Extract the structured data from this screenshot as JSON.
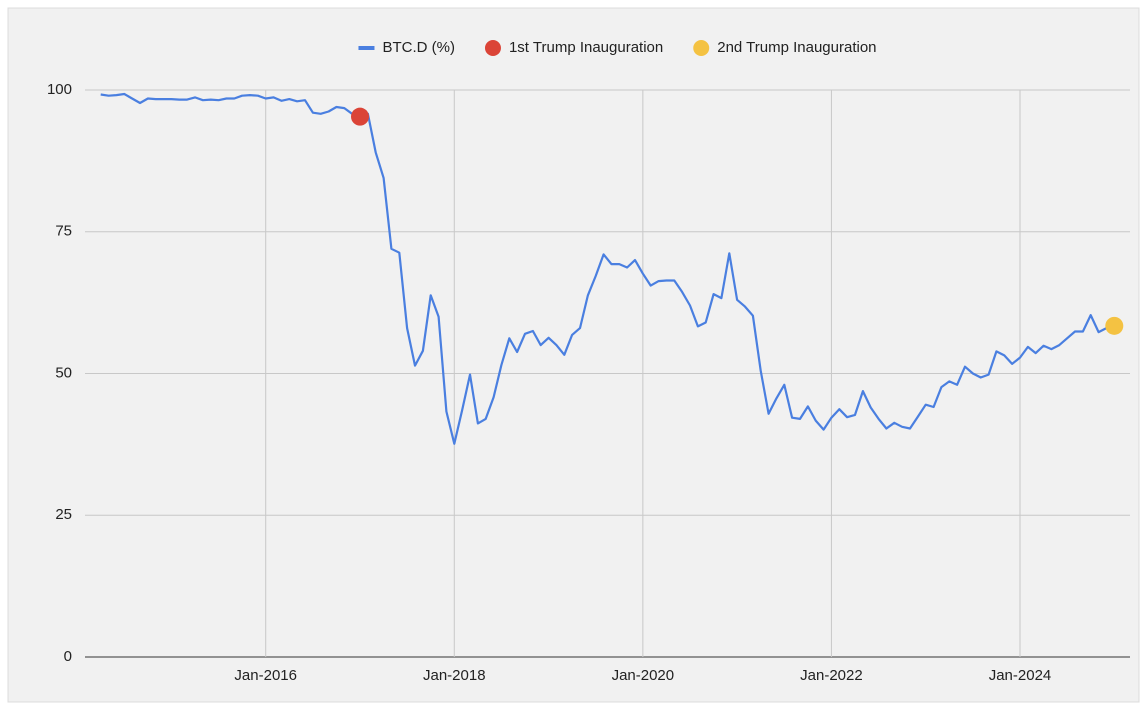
{
  "chart_data": {
    "type": "line",
    "legend": "top",
    "grid": true,
    "xlim": [
      "2014-02",
      "2025-03"
    ],
    "xticks": [
      {
        "value": "2016-01",
        "label": "Jan-2016"
      },
      {
        "value": "2018-01",
        "label": "Jan-2018"
      },
      {
        "value": "2020-01",
        "label": "Jan-2020"
      },
      {
        "value": "2022-01",
        "label": "Jan-2022"
      },
      {
        "value": "2024-01",
        "label": "Jan-2024"
      }
    ],
    "ylim": [
      0,
      100
    ],
    "yticks": [
      0,
      25,
      50,
      75,
      100
    ],
    "series": [
      {
        "name": "BTC.D (%)",
        "color": "#4a7fe0",
        "style": "line",
        "x": [
          "2014-04",
          "2014-05",
          "2014-06",
          "2014-07",
          "2014-08",
          "2014-09",
          "2014-10",
          "2014-11",
          "2014-12",
          "2015-01",
          "2015-02",
          "2015-03",
          "2015-04",
          "2015-05",
          "2015-06",
          "2015-07",
          "2015-08",
          "2015-09",
          "2015-10",
          "2015-11",
          "2015-12",
          "2016-01",
          "2016-02",
          "2016-03",
          "2016-04",
          "2016-05",
          "2016-06",
          "2016-07",
          "2016-08",
          "2016-09",
          "2016-10",
          "2016-11",
          "2016-12",
          "2017-01",
          "2017-02",
          "2017-03",
          "2017-04",
          "2017-05",
          "2017-06",
          "2017-07",
          "2017-08",
          "2017-09",
          "2017-10",
          "2017-11",
          "2017-12",
          "2018-01",
          "2018-02",
          "2018-03",
          "2018-04",
          "2018-05",
          "2018-06",
          "2018-07",
          "2018-08",
          "2018-09",
          "2018-10",
          "2018-11",
          "2018-12",
          "2019-01",
          "2019-02",
          "2019-03",
          "2019-04",
          "2019-05",
          "2019-06",
          "2019-07",
          "2019-08",
          "2019-09",
          "2019-10",
          "2019-11",
          "2019-12",
          "2020-01",
          "2020-02",
          "2020-03",
          "2020-04",
          "2020-05",
          "2020-06",
          "2020-07",
          "2020-08",
          "2020-09",
          "2020-10",
          "2020-11",
          "2020-12",
          "2021-01",
          "2021-02",
          "2021-03",
          "2021-04",
          "2021-05",
          "2021-06",
          "2021-07",
          "2021-08",
          "2021-09",
          "2021-10",
          "2021-11",
          "2021-12",
          "2022-01",
          "2022-02",
          "2022-03",
          "2022-04",
          "2022-05",
          "2022-06",
          "2022-07",
          "2022-08",
          "2022-09",
          "2022-10",
          "2022-11",
          "2022-12",
          "2023-01",
          "2023-02",
          "2023-03",
          "2023-04",
          "2023-05",
          "2023-06",
          "2023-07",
          "2023-08",
          "2023-09",
          "2023-10",
          "2023-11",
          "2023-12",
          "2024-01",
          "2024-02",
          "2024-03",
          "2024-04",
          "2024-05",
          "2024-06",
          "2024-07",
          "2024-08",
          "2024-09",
          "2024-10",
          "2024-11",
          "2024-12",
          "2025-01"
        ],
        "values": [
          99.2,
          99.0,
          99.1,
          99.3,
          98.5,
          97.7,
          98.5,
          98.4,
          98.4,
          98.4,
          98.3,
          98.3,
          98.7,
          98.2,
          98.3,
          98.2,
          98.5,
          98.5,
          99.0,
          99.1,
          99.0,
          98.5,
          98.7,
          98.1,
          98.4,
          98.0,
          98.2,
          96.0,
          95.8,
          96.2,
          97.0,
          96.8,
          95.8,
          95.3,
          95.8,
          89.0,
          84.5,
          72.0,
          71.3,
          58.0,
          51.4,
          54.0,
          63.8,
          60.0,
          43.3,
          37.6,
          43.5,
          49.8,
          41.2,
          42.0,
          45.8,
          51.5,
          56.2,
          53.8,
          57.0,
          57.5,
          55.0,
          56.3,
          55.0,
          53.3,
          56.8,
          58.0,
          63.8,
          67.2,
          71.0,
          69.3,
          69.3,
          68.7,
          70.0,
          67.6,
          65.5,
          66.3,
          66.4,
          66.4,
          64.4,
          62.0,
          58.3,
          59.0,
          64.0,
          63.3,
          71.2,
          63.0,
          61.8,
          60.2,
          50.5,
          42.9,
          45.6,
          48.0,
          42.2,
          42.0,
          44.2,
          41.7,
          40.1,
          42.2,
          43.7,
          42.3,
          42.7,
          46.9,
          44.0,
          42.0,
          40.3,
          41.3,
          40.6,
          40.3,
          42.4,
          44.5,
          44.1,
          47.6,
          48.6,
          48.0,
          51.2,
          50.0,
          49.3,
          49.8,
          53.9,
          53.2,
          51.7,
          52.8,
          54.7,
          53.6,
          54.9,
          54.3,
          55.0,
          56.2,
          57.4,
          57.4,
          60.3,
          57.3,
          58.0,
          58.4
        ]
      },
      {
        "name": "1st Trump Inauguration",
        "color": "#db4437",
        "style": "point",
        "x": [
          "2017-01"
        ],
        "values": [
          95.3
        ]
      },
      {
        "name": "2nd Trump Inauguration",
        "color": "#f4c242",
        "style": "point",
        "x": [
          "2025-01"
        ],
        "values": [
          58.4
        ]
      }
    ]
  }
}
